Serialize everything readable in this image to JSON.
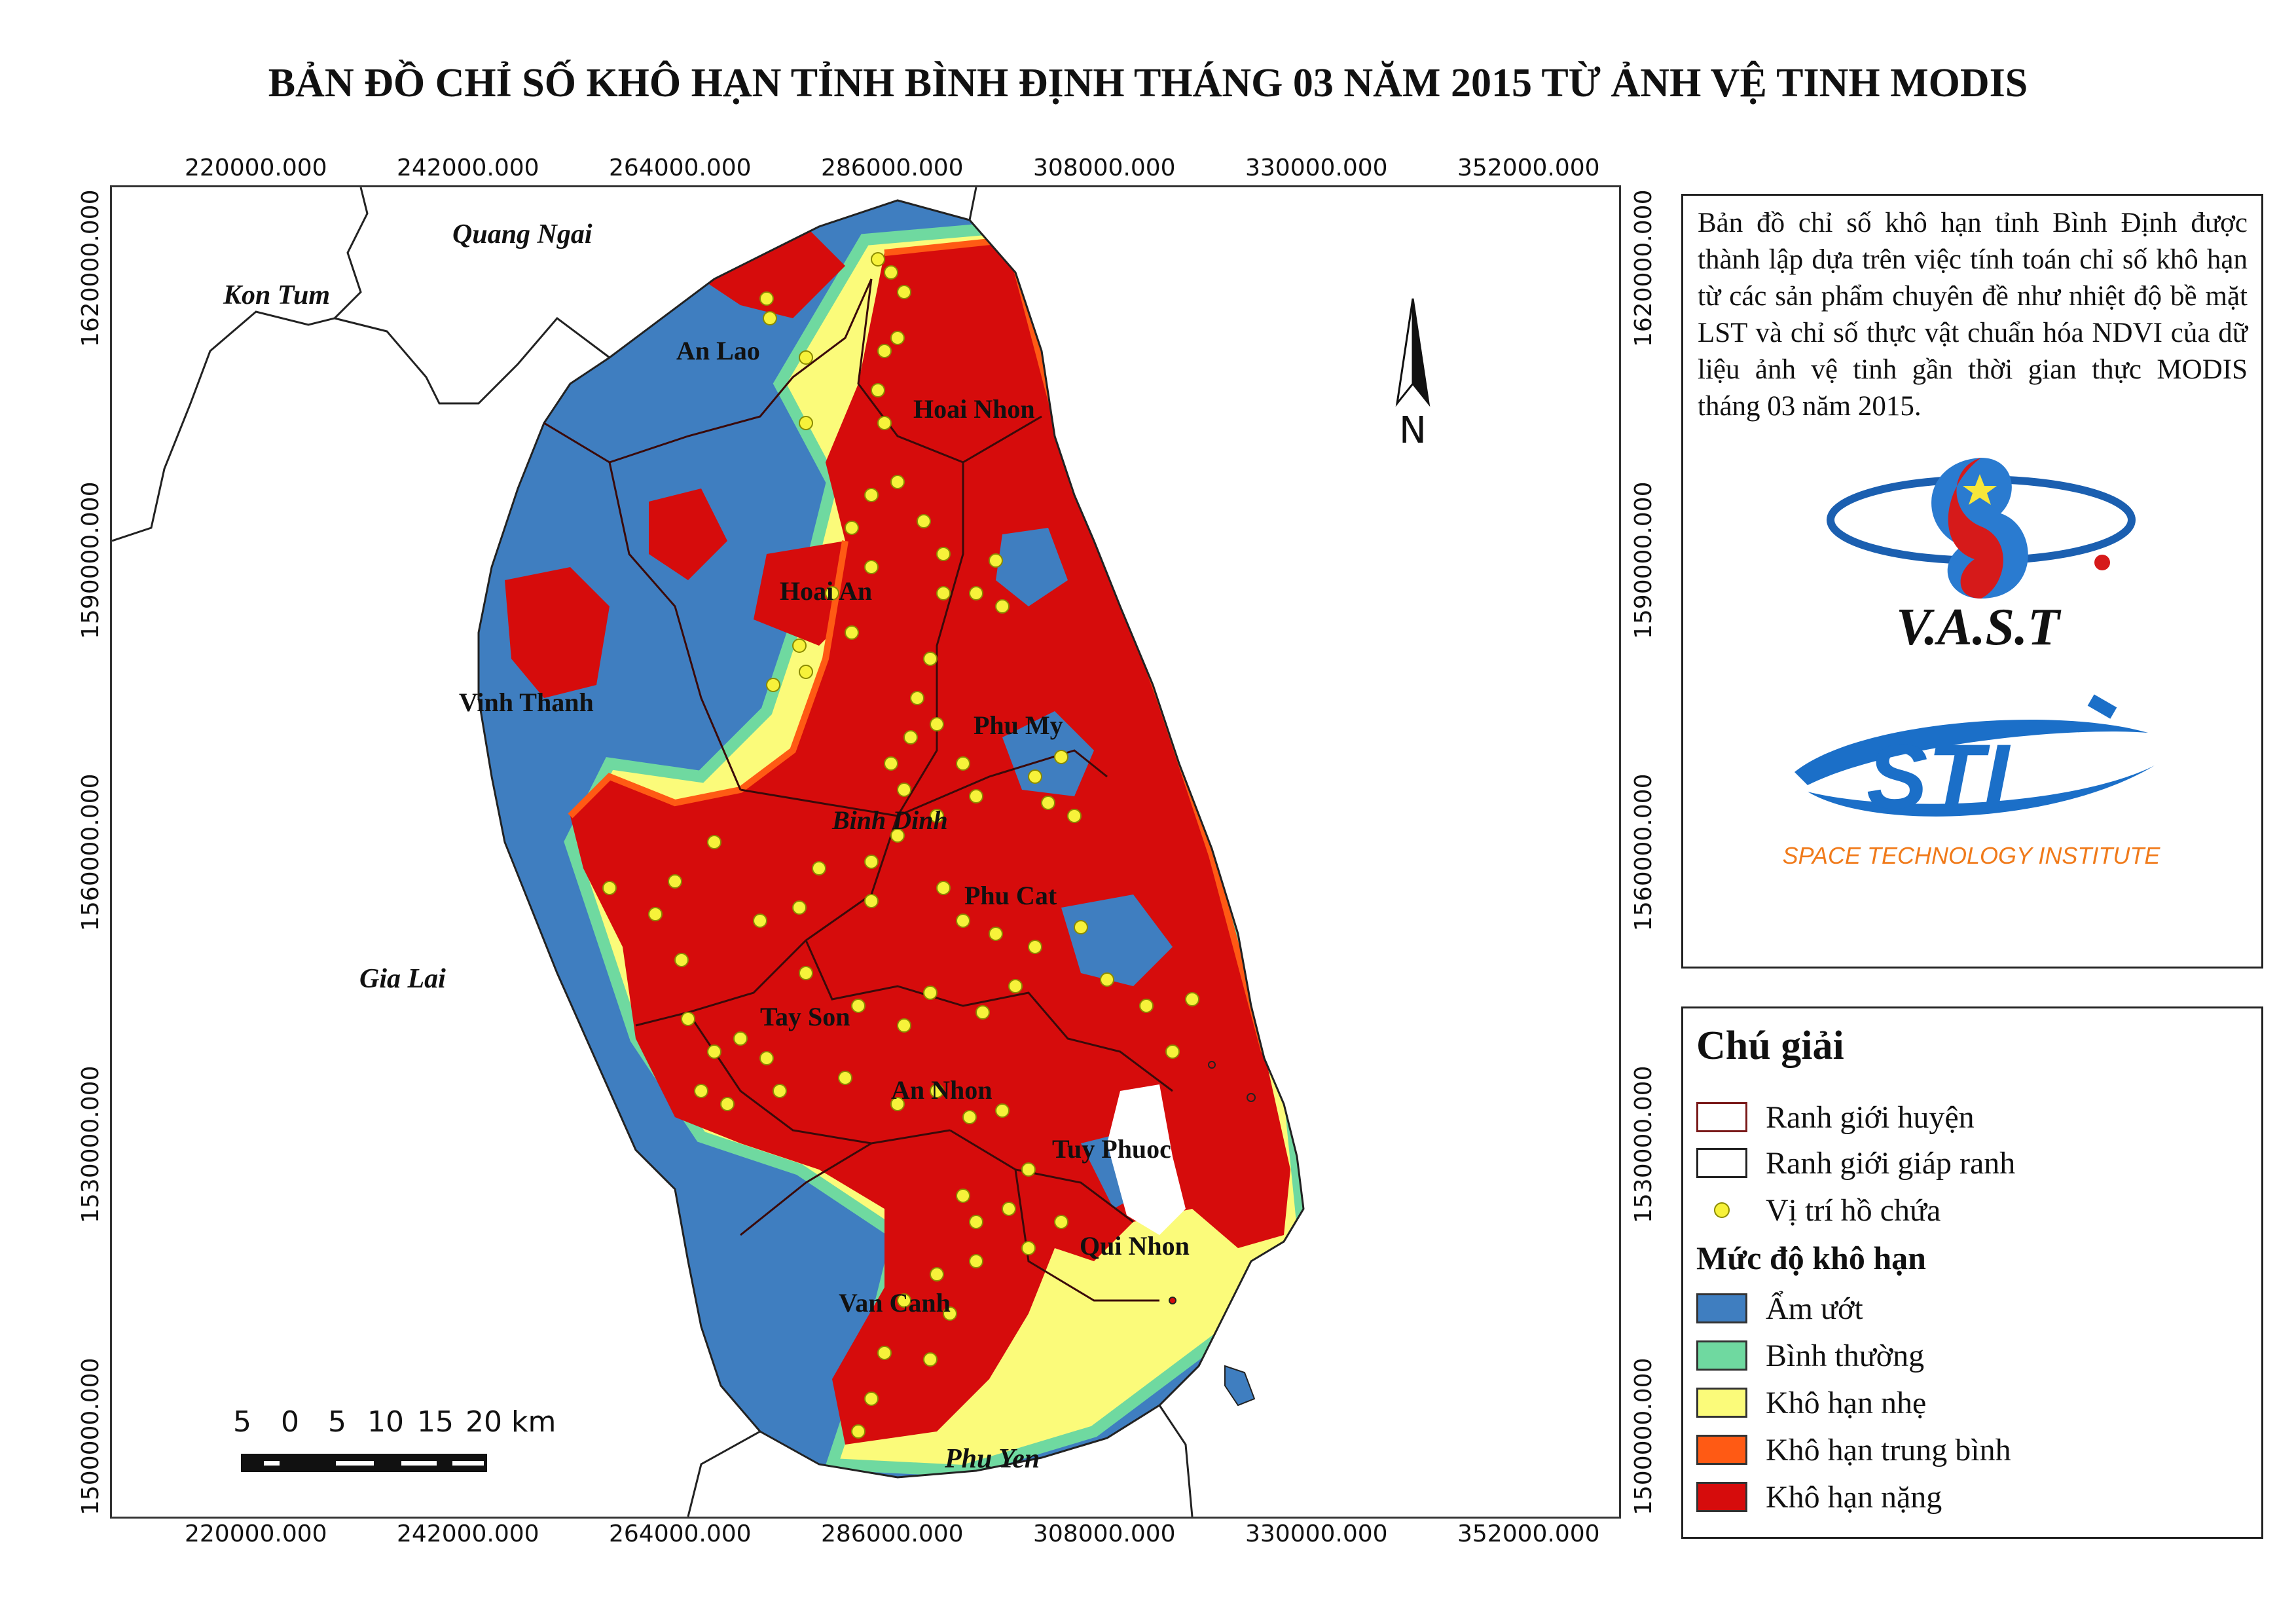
{
  "title": "BẢN ĐỒ CHỈ SỐ KHÔ HẠN TỈNH BÌNH ĐỊNH THÁNG 03 NĂM 2015 TỪ ẢNH VỆ TINH MODIS",
  "axes": {
    "x_ticks": [
      "220000.000",
      "242000.000",
      "264000.000",
      "286000.000",
      "308000.000",
      "330000.000",
      "352000.000"
    ],
    "y_ticks": [
      "1620000.000",
      "1590000.000",
      "1560000.000",
      "1530000.000",
      "1500000.000"
    ]
  },
  "neighbors": [
    "Quang Ngai",
    "Kon Tum",
    "Gia Lai",
    "Phu Yen"
  ],
  "districts": [
    "An Lao",
    "Hoai Nhon",
    "Hoai An",
    "Vinh Thanh",
    "Phu My",
    "Binh Dinh",
    "Phu Cat",
    "Tay Son",
    "An Nhon",
    "Tuy Phuoc",
    "Qui Nhon",
    "Van Canh"
  ],
  "north_arrow": {
    "label": "N"
  },
  "scale_bar": {
    "labels": [
      "5",
      "0",
      "5",
      "10",
      "15",
      "20 km"
    ]
  },
  "description": "Bản đồ chỉ số khô hạn tỉnh Bình Định được thành lập  dựa trên việc tính toán chỉ số khô hạn từ các sản phẩm chuyên đề như nhiệt độ bề mặt LST và chỉ số thực vật chuẩn hóa NDVI của dữ liệu ảnh vệ tinh gần thời gian thực MODIS tháng 03 năm 2015.",
  "logos": {
    "vast": {
      "text": "V.A.S.T"
    },
    "sti": {
      "text": "STI",
      "subtitle": "SPACE TECHNOLOGY INSTITUTE"
    }
  },
  "legend": {
    "title": "Chú giải",
    "boundaries": [
      {
        "label": "Ranh giới huyện",
        "border": "#7a1a1a"
      },
      {
        "label": "Ranh giới giáp ranh",
        "border": "#222222"
      }
    ],
    "reservoir": {
      "label": "Vị trí hồ chứa",
      "color": "#f7f23a"
    },
    "drought_title": "Mức độ khô hạn",
    "classes": [
      {
        "label": "Ẩm ướt",
        "color": "#3f7ec0"
      },
      {
        "label": "Bình thường",
        "color": "#6fd9a0"
      },
      {
        "label": "Khô hạn nhẹ",
        "color": "#fbfb7a"
      },
      {
        "label": "Khô hạn trung bình",
        "color": "#ff5a14"
      },
      {
        "label": "Khô hạn nặng",
        "color": "#d60c0c"
      }
    ]
  }
}
